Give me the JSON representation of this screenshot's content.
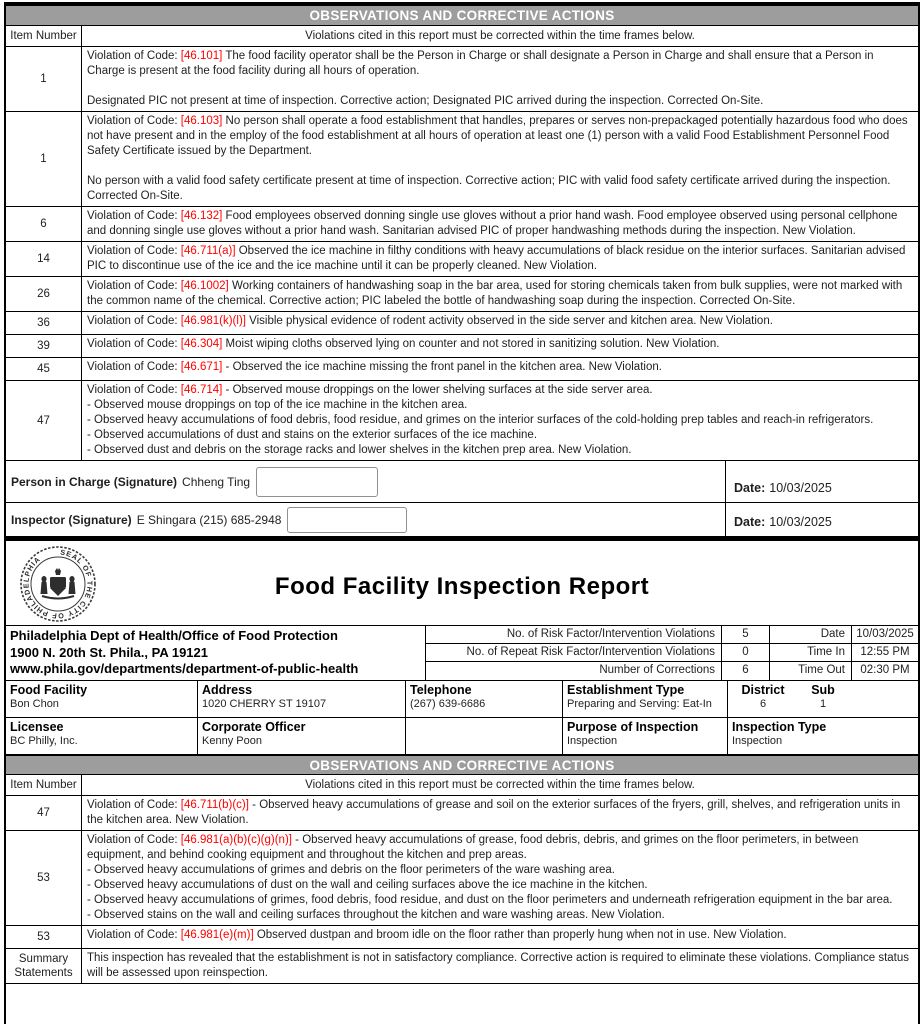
{
  "colors": {
    "section_header_bg": "#9d9d9d",
    "section_header_text": "#ffffff",
    "violation_code_red": "#ff0000",
    "border_black": "#000000"
  },
  "section_header": "OBSERVATIONS AND CORRECTIVE ACTIONS",
  "item_col_header": "Item Number",
  "note": "Violations cited in this report must be corrected within the time frames below.",
  "violation_prefix": "Violation of Code:",
  "table1": [
    {
      "item": "1",
      "code": "[46.101]",
      "text": "The food facility operator shall be the Person in Charge or shall designate a Person in Charge and shall ensure that a Person in Charge is present at the food facility during all hours of operation.\n\nDesignated PIC not present at time of inspection. Corrective action; Designated PIC arrived during the inspection. Corrected On-Site."
    },
    {
      "item": "1",
      "code": "[46.103]",
      "text": "No person shall operate a food establishment that handles, prepares or serves non-prepackaged potentially hazardous food who does not have present and in the employ of the food establishment at all hours of operation at least one (1) person with a valid Food Establishment Personnel Food Safety Certificate issued by the Department.\n\nNo person with a valid food safety certificate present at time of inspection. Corrective action; PIC with valid food safety certificate arrived during the inspection. Corrected On-Site."
    },
    {
      "item": "6",
      "code": "[46.132]",
      "text": "Food employees observed donning single use gloves without a prior hand wash. Food employee observed using personal cellphone and donning single use gloves without a prior hand wash. Sanitarian advised PIC of proper handwashing methods during the inspection. New Violation."
    },
    {
      "item": "14",
      "code": "[46.711(a)]",
      "text": "Observed the ice machine in filthy conditions with heavy accumulations of black residue on the interior surfaces. Sanitarian advised PIC to discontinue use of the ice and the ice machine until it can be properly cleaned. New Violation."
    },
    {
      "item": "26",
      "code": "[46.1002]",
      "text": "Working containers of handwashing soap in the bar area, used for storing chemicals taken from bulk supplies, were not marked with the common name of the chemical. Corrective action; PIC labeled the bottle of handwashing soap during the inspection. Corrected On-Site."
    },
    {
      "item": "36",
      "code": "[46.981(k)(l)]",
      "text": "Visible physical evidence of rodent activity observed in the side server and kitchen area. New Violation."
    },
    {
      "item": "39",
      "code": "[46.304]",
      "text": "Moist wiping cloths observed lying on counter and not stored in sanitizing solution. New Violation."
    },
    {
      "item": "45",
      "code": "[46.671]",
      "text": "- Observed the ice machine missing the front panel in the kitchen area. New Violation."
    },
    {
      "item": "47",
      "code": "[46.714]",
      "text": "- Observed mouse droppings on the lower shelving surfaces at the side server area.\n- Observed mouse droppings on top of the ice machine in the kitchen area.\n- Observed heavy accumulations of food debris, food residue, and grimes on the interior surfaces of the cold-holding prep tables and reach-in refrigerators.\n- Observed accumulations of dust and stains on the exterior surfaces of the ice machine.\n- Observed dust and debris on the storage racks and lower shelves in the kitchen prep area. New Violation."
    }
  ],
  "signatures": {
    "pic": {
      "label": "Person in Charge (Signature)",
      "name": "Chheng Ting",
      "date_label": "Date:",
      "date": "10/03/2025"
    },
    "inspector": {
      "label": "Inspector (Signature)",
      "name": "E Shingara (215) 685-2948",
      "date_label": "Date:",
      "date": "10/03/2025"
    }
  },
  "report": {
    "title": "Food Facility Inspection Report",
    "seal_name": "Seal of the City of Philadelphia",
    "seal_ring_text": "SEAL OF THE CITY OF PHILADELPHIA"
  },
  "agency": {
    "line1": "Philadelphia Dept of Health/Office of Food Protection",
    "line2": "1900 N. 20th St. Phila., PA 19121",
    "line3": "www.phila.gov/departments/department-of-public-health"
  },
  "stats": [
    {
      "label": "No. of Risk Factor/Intervention Violations",
      "value": "5",
      "key": "Date",
      "val": "10/03/2025"
    },
    {
      "label": "No. of Repeat Risk Factor/Intervention Violations",
      "value": "0",
      "key": "Time In",
      "val": "12:55 PM"
    },
    {
      "label": "Number of Corrections",
      "value": "6",
      "key": "Time Out",
      "val": "02:30 PM"
    }
  ],
  "facility": {
    "food_facility_label": "Food Facility",
    "food_facility": "Bon Chon",
    "address_label": "Address",
    "address": "1020 CHERRY ST 19107",
    "telephone_label": "Telephone",
    "telephone": "(267) 639-6686",
    "establishment_type_label": "Establishment Type",
    "establishment_type": "Preparing and Serving: Eat-In",
    "district_label": "District",
    "district": "6",
    "sub_label": "Sub",
    "sub": "1",
    "licensee_label": "Licensee",
    "licensee": "BC Philly, Inc.",
    "corporate_officer_label": "Corporate Officer",
    "corporate_officer": "Kenny Poon",
    "purpose_label": "Purpose of Inspection",
    "purpose": "Inspection",
    "inspection_type_label": "Inspection Type",
    "inspection_type": "Inspection"
  },
  "table2": [
    {
      "item": "47",
      "code": "[46.711(b)(c)]",
      "text": "- Observed heavy accumulations of grease and soil on the exterior surfaces of the fryers, grill, shelves, and refrigeration units in the kitchen area. New Violation."
    },
    {
      "item": "53",
      "code": "[46.981(a)(b)(c)(g)(n)]",
      "text": "- Observed heavy accumulations of grease, food debris, debris, and grimes on the floor perimeters, in between equipment, and behind cooking equipment and throughout the kitchen and prep areas.\n- Observed heavy accumulations of grimes and debris on the floor perimeters of the ware washing area.\n- Observed heavy accumulations of dust on the wall and ceiling surfaces above the ice machine in the kitchen.\n- Observed heavy accumulations of grimes, food debris, food residue, and dust on the floor perimeters and underneath refrigeration equipment in the bar area.\n- Observed stains on the wall and ceiling surfaces throughout the kitchen and ware washing areas. New Violation."
    },
    {
      "item": "53",
      "code": "[46.981(e)(m)]",
      "text": "Observed dustpan and broom idle on the floor rather than properly hung when not in use. New Violation."
    }
  ],
  "summary": {
    "label": "Summary Statements",
    "text": "This inspection has revealed that the establishment is not in satisfactory compliance. Corrective action is required to eliminate these violations. Compliance status will be assessed upon reinspection."
  }
}
